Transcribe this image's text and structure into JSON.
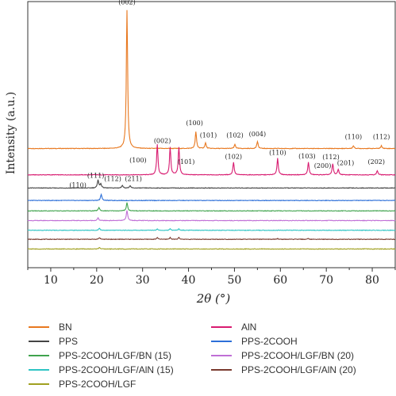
{
  "chart_data": {
    "type": "line",
    "xlabel": "2θ (°)",
    "ylabel": "Intensity (a.u.)",
    "xlim": [
      5,
      85
    ],
    "xticks": [
      "10",
      "20",
      "30",
      "40",
      "50",
      "60",
      "70",
      "80"
    ],
    "grid": false,
    "legend_position": "bottom",
    "series": [
      {
        "name": "BN",
        "color": "#e8781f",
        "baseline": 0.0,
        "peaks": [
          [
            26.6,
            1.0
          ],
          [
            41.6,
            0.12
          ],
          [
            43.7,
            0.04
          ],
          [
            50.1,
            0.03
          ],
          [
            55.0,
            0.05
          ],
          [
            75.9,
            0.02
          ],
          [
            82.0,
            0.02
          ]
        ]
      },
      {
        "name": "AlN",
        "color": "#d81b70",
        "baseline": -0.19,
        "peaks": [
          [
            33.2,
            0.22
          ],
          [
            36.0,
            0.2
          ],
          [
            37.9,
            0.2
          ],
          [
            49.8,
            0.09
          ],
          [
            59.4,
            0.12
          ],
          [
            66.1,
            0.09
          ],
          [
            71.4,
            0.08
          ],
          [
            72.6,
            0.04
          ],
          [
            81.1,
            0.03
          ]
        ]
      },
      {
        "name": "PPS",
        "color": "#444444",
        "baseline": -0.285,
        "peaks": [
          [
            20.3,
            0.06
          ],
          [
            20.9,
            0.03
          ],
          [
            25.6,
            0.02
          ],
          [
            27.3,
            0.015
          ]
        ]
      },
      {
        "name": "PPS-2COOH",
        "color": "#2c6fd8",
        "baseline": -0.375,
        "peaks": [
          [
            21.0,
            0.045
          ]
        ]
      },
      {
        "name": "PPS-2COOH/LGF/BN (15)",
        "color": "#3fa34d",
        "baseline": -0.45,
        "peaks": [
          [
            20.5,
            0.025
          ],
          [
            26.6,
            0.06
          ]
        ]
      },
      {
        "name": "PPS-2COOH/LGF/BN (20)",
        "color": "#c06fd6",
        "baseline": -0.52,
        "peaks": [
          [
            20.3,
            0.02
          ],
          [
            26.6,
            0.075
          ]
        ]
      },
      {
        "name": "PPS-2COOH/LGF/AlN (15)",
        "color": "#2ec4c4",
        "baseline": -0.59,
        "peaks": [
          [
            20.6,
            0.015
          ],
          [
            33.2,
            0.01
          ],
          [
            36.0,
            0.01
          ],
          [
            37.9,
            0.01
          ]
        ]
      },
      {
        "name": "PPS-2COOH/LGF/AlN (20)",
        "color": "#7a3a2e",
        "baseline": -0.655,
        "peaks": [
          [
            20.6,
            0.012
          ],
          [
            33.2,
            0.012
          ],
          [
            36.0,
            0.012
          ],
          [
            37.9,
            0.012
          ],
          [
            59.4,
            0.005
          ],
          [
            66.1,
            0.005
          ]
        ]
      },
      {
        "name": "PPS-2COOH/LGF",
        "color": "#a0a020",
        "baseline": -0.725,
        "peaks": [
          [
            20.6,
            0.012
          ]
        ]
      }
    ],
    "annotations": [
      {
        "text": "(002)",
        "x": 26.6,
        "y": 1.04
      },
      {
        "text": "(100)",
        "x": 41.3,
        "y": 0.17
      },
      {
        "text": "(101)",
        "x": 44.3,
        "y": 0.08
      },
      {
        "text": "(102)",
        "x": 50.1,
        "y": 0.08
      },
      {
        "text": "(004)",
        "x": 55.0,
        "y": 0.09
      },
      {
        "text": "(110)",
        "x": 75.9,
        "y": 0.07
      },
      {
        "text": "(112)",
        "x": 82.0,
        "y": 0.07
      },
      {
        "text": "(100)",
        "x": 29.0,
        "y": -0.1
      },
      {
        "text": "(002)",
        "x": 34.3,
        "y": 0.04
      },
      {
        "text": "(101)",
        "x": 39.5,
        "y": -0.11
      },
      {
        "text": "(102)",
        "x": 49.8,
        "y": -0.075
      },
      {
        "text": "(110)",
        "x": 59.4,
        "y": -0.045
      },
      {
        "text": "(103)",
        "x": 65.8,
        "y": -0.07
      },
      {
        "text": "(200)",
        "x": 69.2,
        "y": -0.14
      },
      {
        "text": "(112)",
        "x": 71.0,
        "y": -0.078
      },
      {
        "text": "(201)",
        "x": 74.2,
        "y": -0.12
      },
      {
        "text": "(202)",
        "x": 80.9,
        "y": -0.11
      },
      {
        "text": "(111)",
        "x": 19.8,
        "y": -0.21
      },
      {
        "text": "(112)",
        "x": 23.5,
        "y": -0.235
      },
      {
        "text": "(211)",
        "x": 28.0,
        "y": -0.235
      },
      {
        "text": "(110)",
        "x": 15.9,
        "y": -0.28
      }
    ]
  }
}
